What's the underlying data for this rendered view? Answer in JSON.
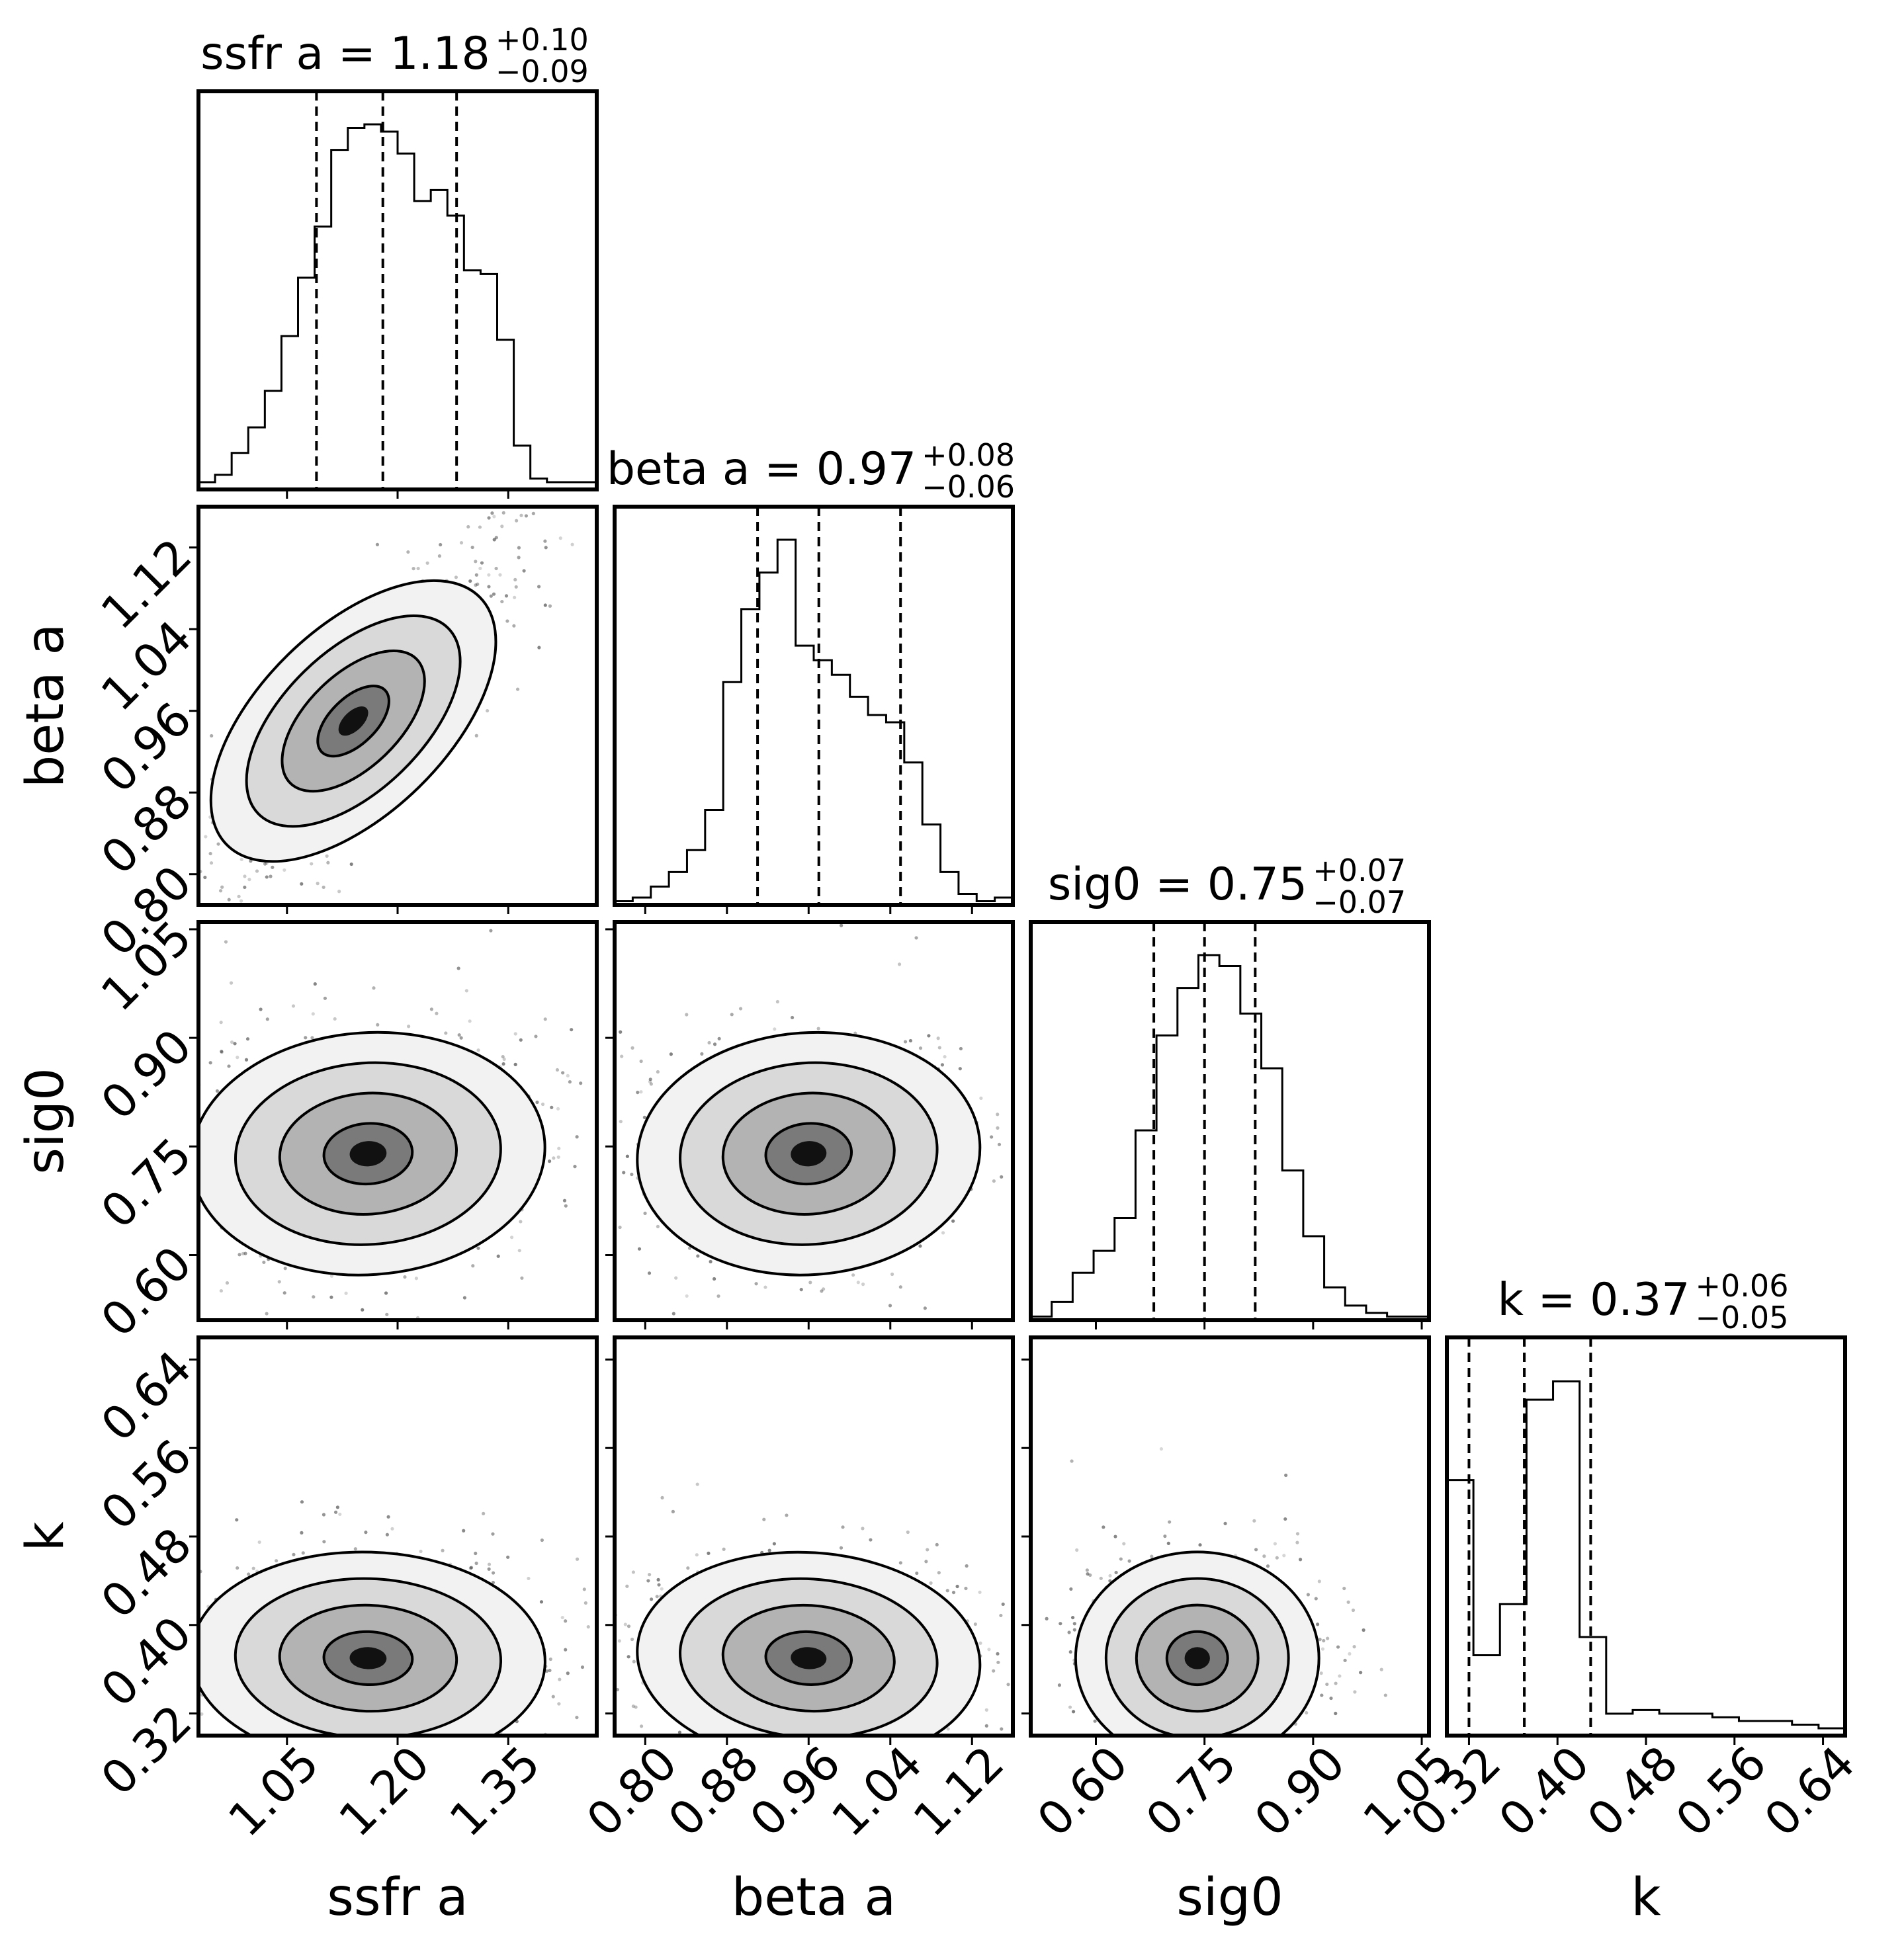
{
  "chart_data": {
    "type": "corner",
    "parameters": [
      {
        "name": "ssfr a",
        "title": "ssfr a",
        "median": "1.18",
        "plus": "+0.10",
        "minus": "−0.09",
        "range": [
          0.93,
          1.47
        ],
        "ticks": [
          1.05,
          1.2,
          1.35
        ],
        "tick_labels": [
          "1.05",
          "1.20",
          "1.35"
        ],
        "quantiles": [
          1.09,
          1.18,
          1.28
        ]
      },
      {
        "name": "beta a",
        "title": "beta a",
        "median": "0.97",
        "plus": "+0.08",
        "minus": "−0.06",
        "range": [
          0.77,
          1.16
        ],
        "ticks": [
          0.8,
          0.88,
          0.96,
          1.04,
          1.12
        ],
        "tick_labels": [
          "0.80",
          "0.88",
          "0.96",
          "1.04",
          "1.12"
        ],
        "quantiles": [
          0.91,
          0.97,
          1.05
        ]
      },
      {
        "name": "sig0",
        "title": "sig0",
        "median": "0.75",
        "plus": "+0.07",
        "minus": "−0.07",
        "range": [
          0.51,
          1.06
        ],
        "ticks": [
          0.6,
          0.75,
          0.9,
          1.05
        ],
        "tick_labels": [
          "0.60",
          "0.75",
          "0.90",
          "1.05"
        ],
        "quantiles": [
          0.68,
          0.75,
          0.82
        ]
      },
      {
        "name": "k",
        "title": "k",
        "median": "0.37",
        "plus": "+0.06",
        "minus": "−0.05",
        "range": [
          0.3,
          0.66
        ],
        "ticks": [
          0.32,
          0.4,
          0.48,
          0.56,
          0.64
        ],
        "tick_labels": [
          "0.32",
          "0.40",
          "0.48",
          "0.56",
          "0.64"
        ],
        "quantiles": [
          0.32,
          0.37,
          0.43
        ]
      }
    ],
    "histograms": [
      [
        0.02,
        0.04,
        0.1,
        0.17,
        0.27,
        0.42,
        0.58,
        0.72,
        0.93,
        0.99,
        1.0,
        0.98,
        0.92,
        0.79,
        0.82,
        0.75,
        0.6,
        0.59,
        0.41,
        0.12,
        0.03,
        0.02,
        0.02,
        0.02
      ],
      [
        0.01,
        0.02,
        0.05,
        0.09,
        0.15,
        0.26,
        0.61,
        0.81,
        0.91,
        1.0,
        0.71,
        0.67,
        0.63,
        0.57,
        0.52,
        0.5,
        0.39,
        0.22,
        0.09,
        0.03,
        0.01,
        0.02
      ],
      [
        0.01,
        0.05,
        0.13,
        0.19,
        0.28,
        0.52,
        0.78,
        0.91,
        1.0,
        0.97,
        0.84,
        0.69,
        0.41,
        0.23,
        0.09,
        0.04,
        0.02,
        0.01,
        0.01
      ],
      [
        0.7,
        0.22,
        0.36,
        0.92,
        0.97,
        0.27,
        0.06,
        0.07,
        0.06,
        0.06,
        0.05,
        0.04,
        0.04,
        0.03,
        0.02
      ]
    ],
    "pairs": [
      {
        "row": 1,
        "col": 0,
        "center": [
          1.14,
          0.95
        ],
        "spread": [
          0.1,
          0.08
        ],
        "corr": 0.88
      },
      {
        "row": 2,
        "col": 0,
        "center": [
          1.16,
          0.74
        ],
        "spread": [
          0.1,
          0.07
        ],
        "corr": 0.1
      },
      {
        "row": 2,
        "col": 1,
        "center": [
          0.96,
          0.74
        ],
        "spread": [
          0.07,
          0.07
        ],
        "corr": 0.1
      },
      {
        "row": 3,
        "col": 0,
        "center": [
          1.16,
          0.37
        ],
        "spread": [
          0.1,
          0.04
        ],
        "corr": -0.05
      },
      {
        "row": 3,
        "col": 1,
        "center": [
          0.96,
          0.37
        ],
        "spread": [
          0.07,
          0.04
        ],
        "corr": -0.1
      },
      {
        "row": 3,
        "col": 2,
        "center": [
          0.74,
          0.37
        ],
        "spread": [
          0.07,
          0.04
        ],
        "corr": 0.0
      }
    ],
    "grid": false
  }
}
